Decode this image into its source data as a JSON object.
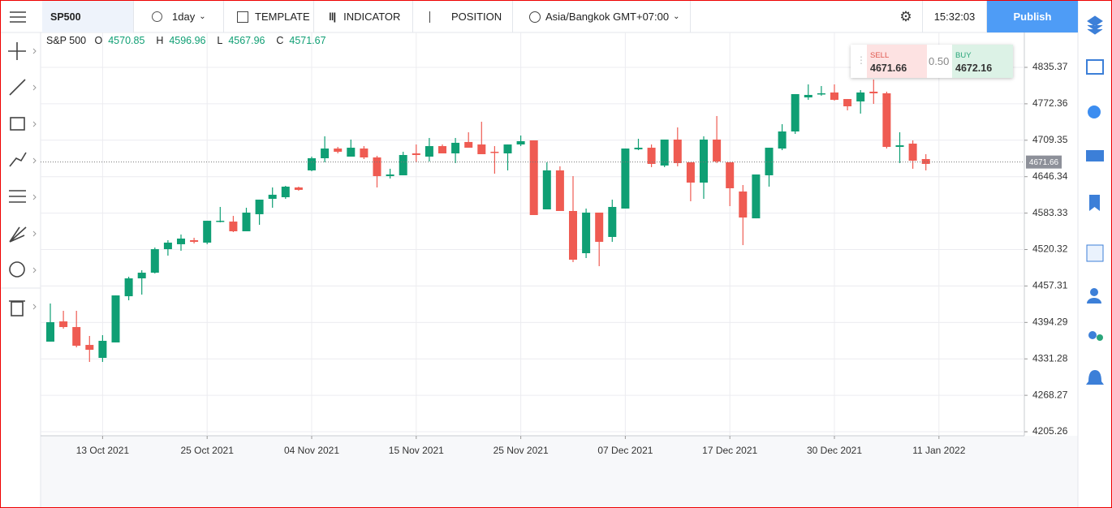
{
  "toolbar": {
    "symbol": "SP500",
    "interval": "1day",
    "template": "TEMPLATE",
    "indicator": "INDICATOR",
    "position": "POSITION",
    "timezone": "Asia/Bangkok GMT+07:00",
    "time": "15:32:03",
    "publish": "Publish"
  },
  "ohlc_header": {
    "symbol": "S&P 500",
    "open_label": "O",
    "open": 4570.85,
    "high_label": "H",
    "high": 4596.96,
    "low_label": "L",
    "low": 4567.96,
    "close_label": "C",
    "close": 4571.67
  },
  "trade": {
    "sell_label": "SELL",
    "sell_price": 4671.66,
    "spread": "0.50",
    "buy_label": "BUY",
    "buy_price": 4672.16
  },
  "chart_data": {
    "type": "candlestick",
    "categories": [
      null,
      null,
      null,
      null,
      "13 Oct 2021",
      null,
      null,
      null,
      null,
      null,
      null,
      null,
      "25 Oct 2021",
      null,
      null,
      null,
      null,
      null,
      null,
      null,
      "04 Nov 2021",
      null,
      null,
      null,
      null,
      null,
      null,
      null,
      "15 Nov 2021",
      null,
      null,
      null,
      null,
      null,
      null,
      null,
      "25 Nov 2021",
      null,
      null,
      null,
      null,
      null,
      null,
      null,
      "07 Dec 2021",
      null,
      null,
      null,
      null,
      null,
      null,
      null,
      "17 Dec 2021",
      null,
      null,
      null,
      null,
      null,
      null,
      null,
      "30 Dec 2021",
      null,
      null,
      null,
      null,
      null,
      null,
      null,
      "11 Jan 2022"
    ],
    "open": [
      4361.1,
      4396.1,
      4386.3,
      4355.4,
      4333.0,
      4359.7,
      4439.6,
      4470.5,
      4480.3,
      4521.0,
      4529.5,
      4536.5,
      4532.3,
      4568.7,
      4568.7,
      4551.9,
      4581.4,
      4608.0,
      4610.8,
      4627.7,
      4657.2,
      4678.2,
      4695.0,
      4681.0,
      4695.0,
      4679.6,
      4647.3,
      4648.7,
      4686.6,
      4681.0,
      4699.2,
      4686.6,
      4706.3,
      4702.0,
      4689.4,
      4686.6,
      4702.0,
      4709.1,
      4589.8,
      4657.2,
      4587.0,
      4514.0,
      4584.2,
      4542.1,
      4591.2,
      4693.6,
      4696.4,
      4665.6,
      4710.5,
      4671.2,
      4636.1,
      4710.5,
      4671.2,
      4620.7,
      4574.3,
      4648.7,
      4695.0,
      4724.5,
      4783.4,
      4789.1,
      4791.9,
      4780.6,
      4776.4,
      4793.3,
      4790.5,
      4697.8,
      4703.5,
      4676.8,
      null
    ],
    "high": [
      4427.0,
      4414.4,
      4414.4,
      4370.9,
      4372.3,
      4441.0,
      4473.3,
      4484.5,
      4523.8,
      4536.5,
      4546.3,
      4540.7,
      4570.1,
      4594.0,
      4578.5,
      4592.6,
      4606.6,
      4627.7,
      4630.5,
      4629.1,
      4681.0,
      4716.1,
      4697.8,
      4710.5,
      4699.2,
      4682.4,
      4660.0,
      4689.4,
      4702.0,
      4713.3,
      4702.0,
      4713.3,
      4723.1,
      4741.3,
      4699.2,
      4702.0,
      4717.5,
      4709.1,
      4671.2,
      4664.2,
      4647.3,
      4591.2,
      4584.2,
      4606.6,
      4695.0,
      4711.9,
      4702.0,
      4710.5,
      4731.5,
      4671.2,
      4716.1,
      4751.2,
      4671.2,
      4631.9,
      4650.1,
      4696.4,
      4737.1,
      4789.1,
      4805.9,
      4803.1,
      4805.9,
      4780.6,
      4796.1,
      4814.3,
      4793.3,
      4723.1,
      4709.1,
      4685.2,
      null
    ],
    "low": [
      4361.1,
      4383.5,
      4351.2,
      4326.0,
      4326.0,
      4359.7,
      4432.6,
      4442.4,
      4478.9,
      4509.8,
      4518.2,
      4530.9,
      4529.5,
      4567.3,
      4550.5,
      4551.9,
      4563.1,
      4592.6,
      4608.0,
      4622.1,
      4655.7,
      4671.2,
      4686.6,
      4681.0,
      4676.8,
      4627.7,
      4643.1,
      4648.7,
      4671.2,
      4672.6,
      4686.6,
      4669.8,
      4696.4,
      4685.2,
      4651.5,
      4657.2,
      4699.2,
      4580.0,
      4589.8,
      4587.0,
      4498.6,
      4505.6,
      4491.6,
      4533.6,
      4591.2,
      4692.2,
      4662.8,
      4662.8,
      4664.2,
      4603.8,
      4608.0,
      4669.8,
      4595.4,
      4528.0,
      4574.3,
      4629.1,
      4692.2,
      4720.3,
      4779.2,
      4786.3,
      4777.8,
      4761.0,
      4755.4,
      4772.2,
      4695.0,
      4669.8,
      4660.0,
      4657.2,
      null
    ],
    "close": [
      4394.7,
      4386.3,
      4354.0,
      4347.0,
      4362.5,
      4441.0,
      4470.5,
      4480.3,
      4521.0,
      4532.3,
      4539.3,
      4533.6,
      4570.1,
      4570.1,
      4551.9,
      4584.2,
      4606.6,
      4615.1,
      4629.1,
      4623.5,
      4678.2,
      4695.0,
      4689.4,
      4696.4,
      4679.6,
      4647.3,
      4650.1,
      4683.8,
      4683.8,
      4699.2,
      4686.6,
      4704.9,
      4696.4,
      4685.2,
      4688.0,
      4702.0,
      4707.7,
      4580.0,
      4657.2,
      4587.0,
      4502.8,
      4584.2,
      4533.6,
      4594.0,
      4695.0,
      4696.4,
      4668.4,
      4710.5,
      4669.8,
      4636.1,
      4710.5,
      4672.6,
      4626.3,
      4575.7,
      4650.1,
      4696.4,
      4724.5,
      4789.1,
      4787.7,
      4790.5,
      4779.2,
      4768.0,
      4791.9,
      4790.5,
      4697.8,
      4700.6,
      4674.0,
      4668.4,
      null
    ],
    "ylim": [
      4198.3,
      4895.7
    ],
    "yticks": [
      4205.26,
      4268.27,
      4331.28,
      4394.29,
      4457.31,
      4520.32,
      4583.33,
      4646.34,
      4709.35,
      4772.36,
      4835.37
    ],
    "last_price": 4671.66,
    "up_color": "#0f9f74",
    "down_color": "#ef5b52",
    "grid": true
  }
}
